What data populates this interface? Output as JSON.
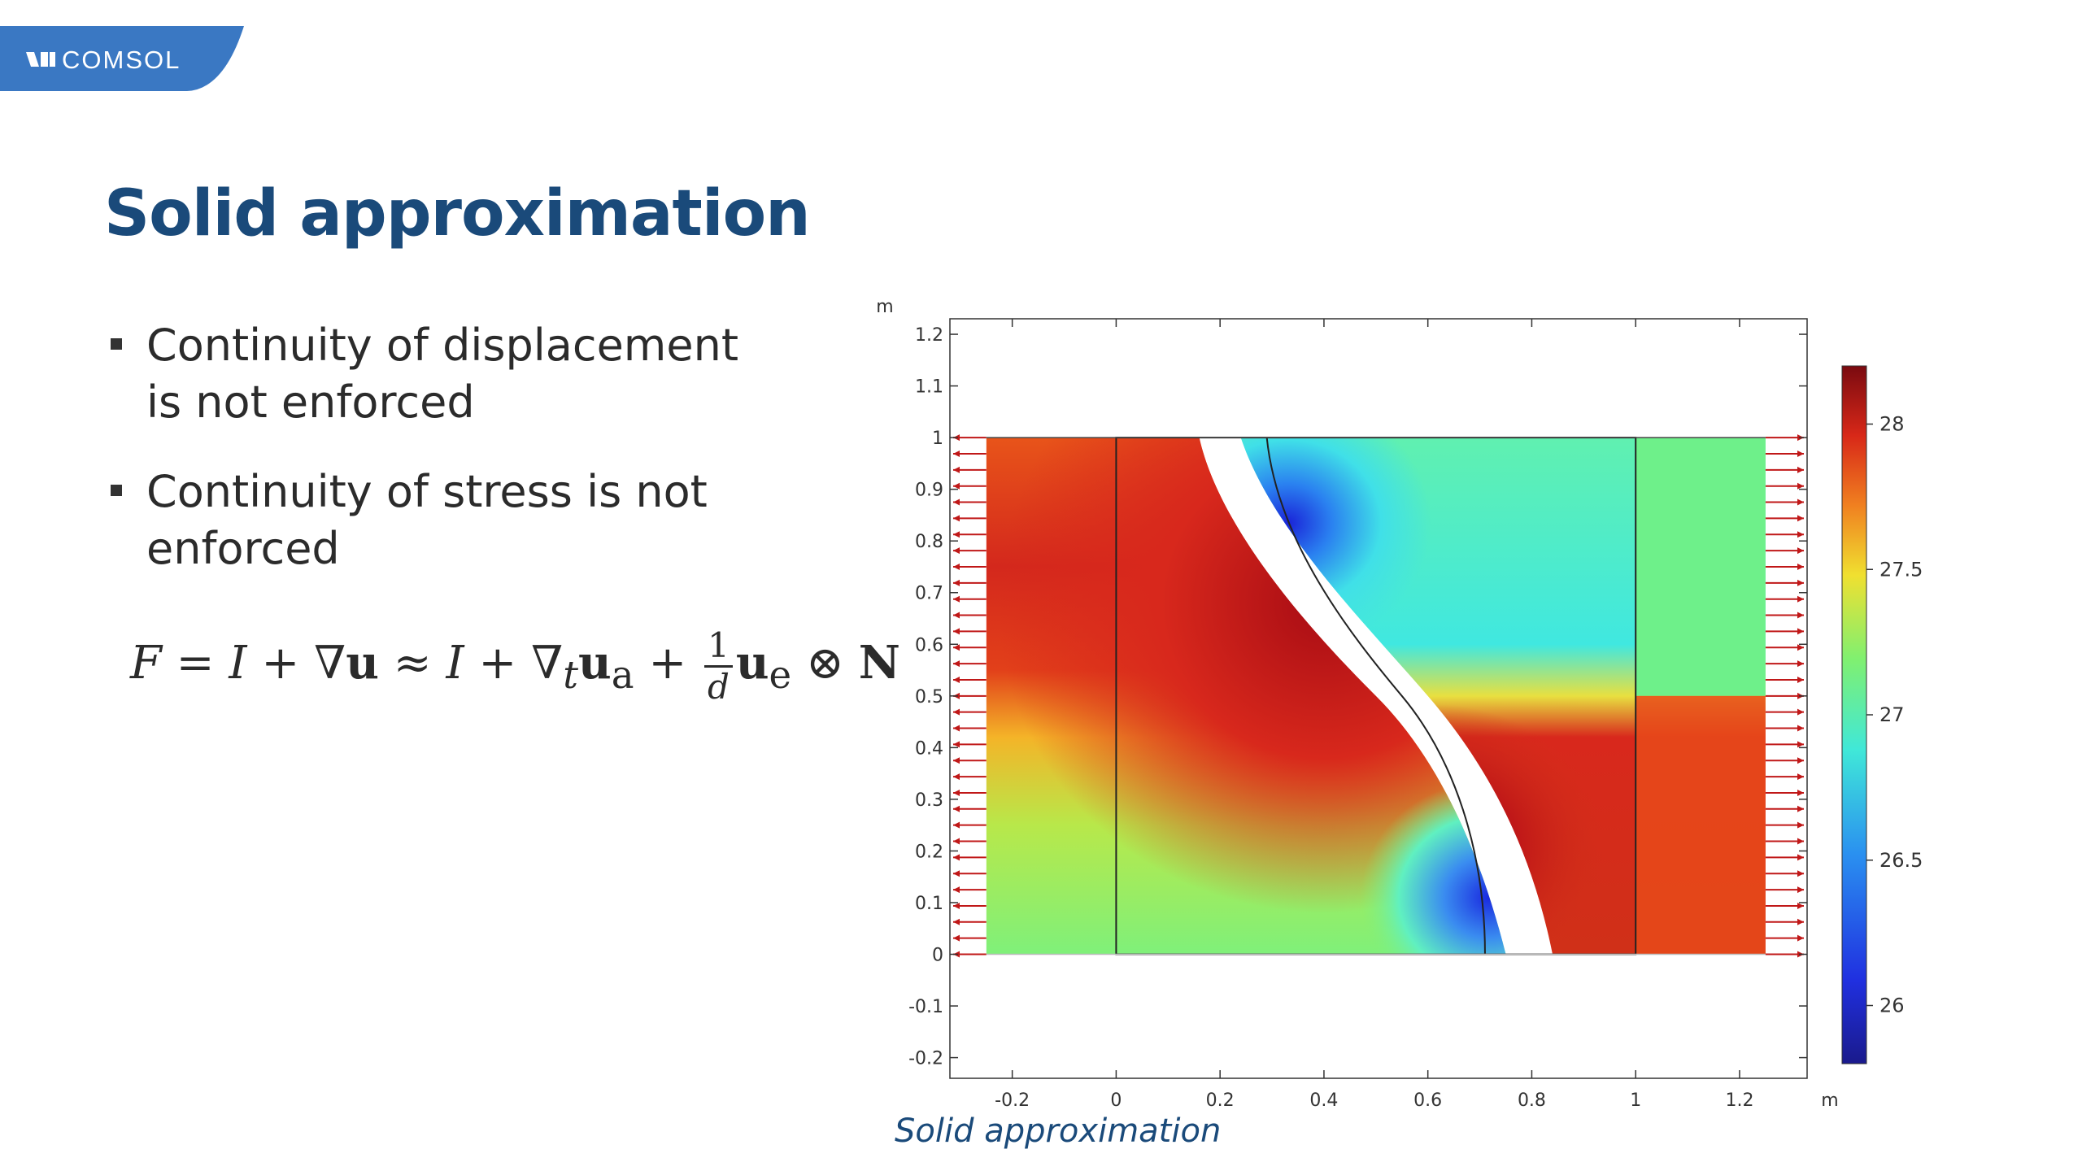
{
  "header": {
    "logo_text": "COMSOL",
    "logo_icon": "comsol-logo-icon",
    "brand_color": "#3a78c3"
  },
  "title": "Solid approximation",
  "bullets": [
    {
      "line1": "Continuity of displacement",
      "line2": "is not enforced"
    },
    {
      "line1": "Continuity of stress is not",
      "line2": "enforced"
    }
  ],
  "equation": {
    "F": "F",
    "eq": "=",
    "I1": "I",
    "plus1": "+",
    "nabla1": "∇",
    "u": "u",
    "approx": "≈",
    "I2": "I",
    "plus2": "+",
    "nabla2": "∇",
    "t": "t",
    "u2": "u",
    "a": "a",
    "plus3": "+",
    "num": "1",
    "den": "d",
    "u3": "u",
    "e": "e",
    "otimes": "⊗",
    "N": "N"
  },
  "chart_data": {
    "type": "heatmap",
    "x_unit": "m",
    "y_unit": "m",
    "x_ticks": [
      "-0.2",
      "0",
      "0.2",
      "0.4",
      "0.6",
      "0.8",
      "1",
      "1.2"
    ],
    "y_ticks": [
      "1.2",
      "1.1",
      "1",
      "0.9",
      "0.8",
      "0.7",
      "0.6",
      "0.5",
      "0.4",
      "0.3",
      "0.2",
      "0.1",
      "0",
      "-0.1",
      "-0.2"
    ],
    "xlim": [
      -0.32,
      1.33
    ],
    "ylim": [
      -0.24,
      1.23
    ],
    "colorbar_ticks": [
      "28",
      "27.5",
      "27",
      "26.5",
      "26"
    ],
    "colorbar_range": [
      25.8,
      28.2
    ],
    "colormap": "rainbow"
  },
  "caption": "Solid approximation"
}
